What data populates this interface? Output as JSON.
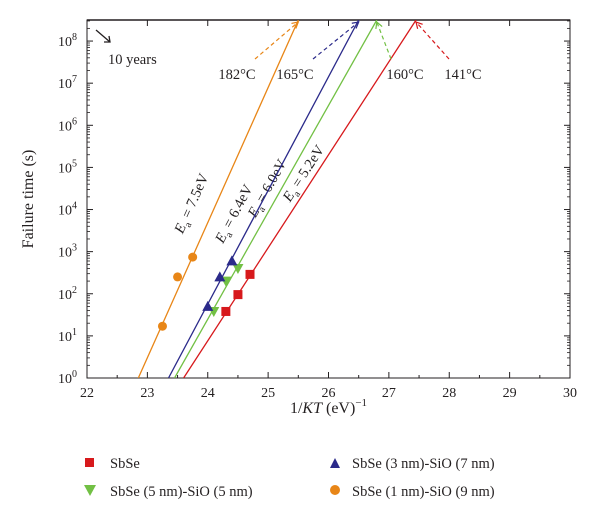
{
  "chart_data": {
    "type": "scatter",
    "xlabel_prefix": "1/",
    "xlabel_italic": "KT",
    "xlabel_suffix": " (eV)",
    "xlabel_sup": "−1",
    "ylabel": "Failure time (s)",
    "xlim": [
      22,
      30
    ],
    "ylim_exp": [
      0,
      8.5
    ],
    "y_scale": "log",
    "x_ticks": [
      "22",
      "23",
      "24",
      "25",
      "26",
      "27",
      "28",
      "29",
      "30"
    ],
    "y_tick_base": "10",
    "y_tick_exps": [
      "0",
      "1",
      "2",
      "3",
      "4",
      "5",
      "6",
      "7",
      "8"
    ],
    "grid": false,
    "legend_position": "bottom",
    "series": [
      {
        "name": "SbSe",
        "color": "#d7191c",
        "marker": "square",
        "points": [
          [
            24.3,
            1.58
          ],
          [
            24.5,
            1.98
          ],
          [
            24.7,
            2.46
          ]
        ],
        "fit_line": [
          [
            23.6,
            0
          ],
          [
            27.45,
            8.5
          ]
        ],
        "ea_value": "5.2",
        "ea_label_at": [
          25.65,
          4.8
        ],
        "temperature": "141°C"
      },
      {
        "name": "SbSe (5 nm)-SiO (5 nm)",
        "color": "#72c044",
        "marker": "triangle-down",
        "points": [
          [
            24.1,
            1.58
          ],
          [
            24.3,
            2.3
          ],
          [
            24.5,
            2.6
          ]
        ],
        "fit_line": [
          [
            23.45,
            0
          ],
          [
            26.8,
            8.5
          ]
        ],
        "ea_value": "6.0",
        "ea_label_at": [
          25.05,
          4.45
        ],
        "temperature": "160°C"
      },
      {
        "name": "SbSe (3 nm)-SiO (7 nm)",
        "color": "#2b2a8a",
        "marker": "triangle-up",
        "points": [
          [
            24.0,
            1.7
          ],
          [
            24.2,
            2.4
          ],
          [
            24.4,
            2.78
          ]
        ],
        "fit_line": [
          [
            23.35,
            0
          ],
          [
            26.5,
            8.5
          ]
        ],
        "ea_value": "6.4",
        "ea_label_at": [
          24.5,
          3.85
        ],
        "temperature": "165°C"
      },
      {
        "name": "SbSe (1 nm)-SiO (9 nm)",
        "color": "#e88617",
        "marker": "circle",
        "points": [
          [
            23.25,
            1.23
          ],
          [
            23.5,
            2.4
          ],
          [
            23.75,
            2.87
          ]
        ],
        "fit_line": [
          [
            22.85,
            0
          ],
          [
            25.5,
            8.5
          ]
        ],
        "ea_value": "7.5",
        "ea_label_at": [
          23.8,
          4.1
        ],
        "temperature": "182°C"
      }
    ],
    "annotation": "10 years",
    "ea_symbol": "E",
    "ea_subscript": "a",
    "ea_equals": " = ",
    "ea_unit": "eV",
    "ten_year_line_exp": 8.5,
    "temperature_label_order": [
      "182°C",
      "165°C",
      "160°C",
      "141°C"
    ]
  },
  "legend": {
    "items": [
      {
        "label": "SbSe",
        "marker": "square",
        "color": "#d7191c"
      },
      {
        "label": "SbSe (3 nm)-SiO (7 nm)",
        "marker": "triangle-up",
        "color": "#2b2a8a"
      },
      {
        "label": "SbSe (5 nm)-SiO (5 nm)",
        "marker": "triangle-down",
        "color": "#72c044"
      },
      {
        "label": "SbSe (1 nm)-SiO (9 nm)",
        "marker": "circle",
        "color": "#e88617"
      }
    ]
  }
}
